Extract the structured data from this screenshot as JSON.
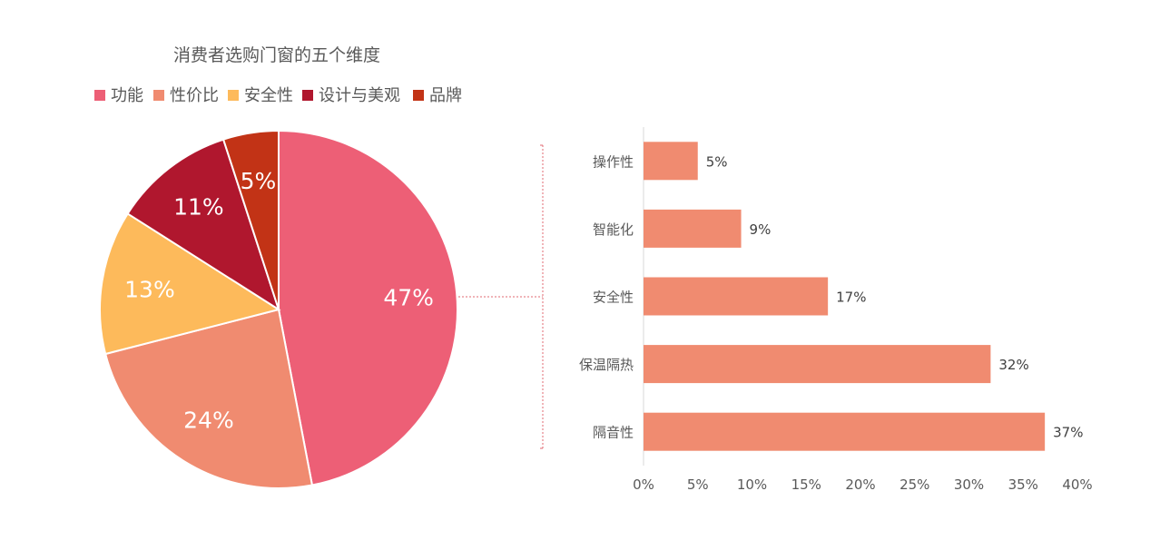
{
  "chart_data": [
    {
      "type": "pie",
      "title": "消费者选购门窗的五个维度",
      "categories": [
        "功能",
        "性价比",
        "安全性",
        "设计与美观",
        "品牌"
      ],
      "values": [
        47,
        24,
        13,
        11,
        5
      ],
      "labels": [
        "47%",
        "24%",
        "13%",
        "11%",
        "5%"
      ],
      "colors": [
        "#ED5F76",
        "#F08B70",
        "#FDBA5B",
        "#B0172E",
        "#C23316"
      ],
      "legend": "top-left"
    },
    {
      "type": "bar",
      "orientation": "horizontal",
      "categories": [
        "操作性",
        "智能化",
        "安全性",
        "保温隔热",
        "隔音性"
      ],
      "values": [
        5,
        9,
        17,
        32,
        37
      ],
      "labels": [
        "5%",
        "9%",
        "17%",
        "32%",
        "37%"
      ],
      "xlim": [
        0,
        40
      ],
      "ticks": [
        "0%",
        "5%",
        "10%",
        "15%",
        "20%",
        "25%",
        "30%",
        "35%",
        "40%"
      ],
      "color": "#F08B70",
      "grid": false
    }
  ]
}
